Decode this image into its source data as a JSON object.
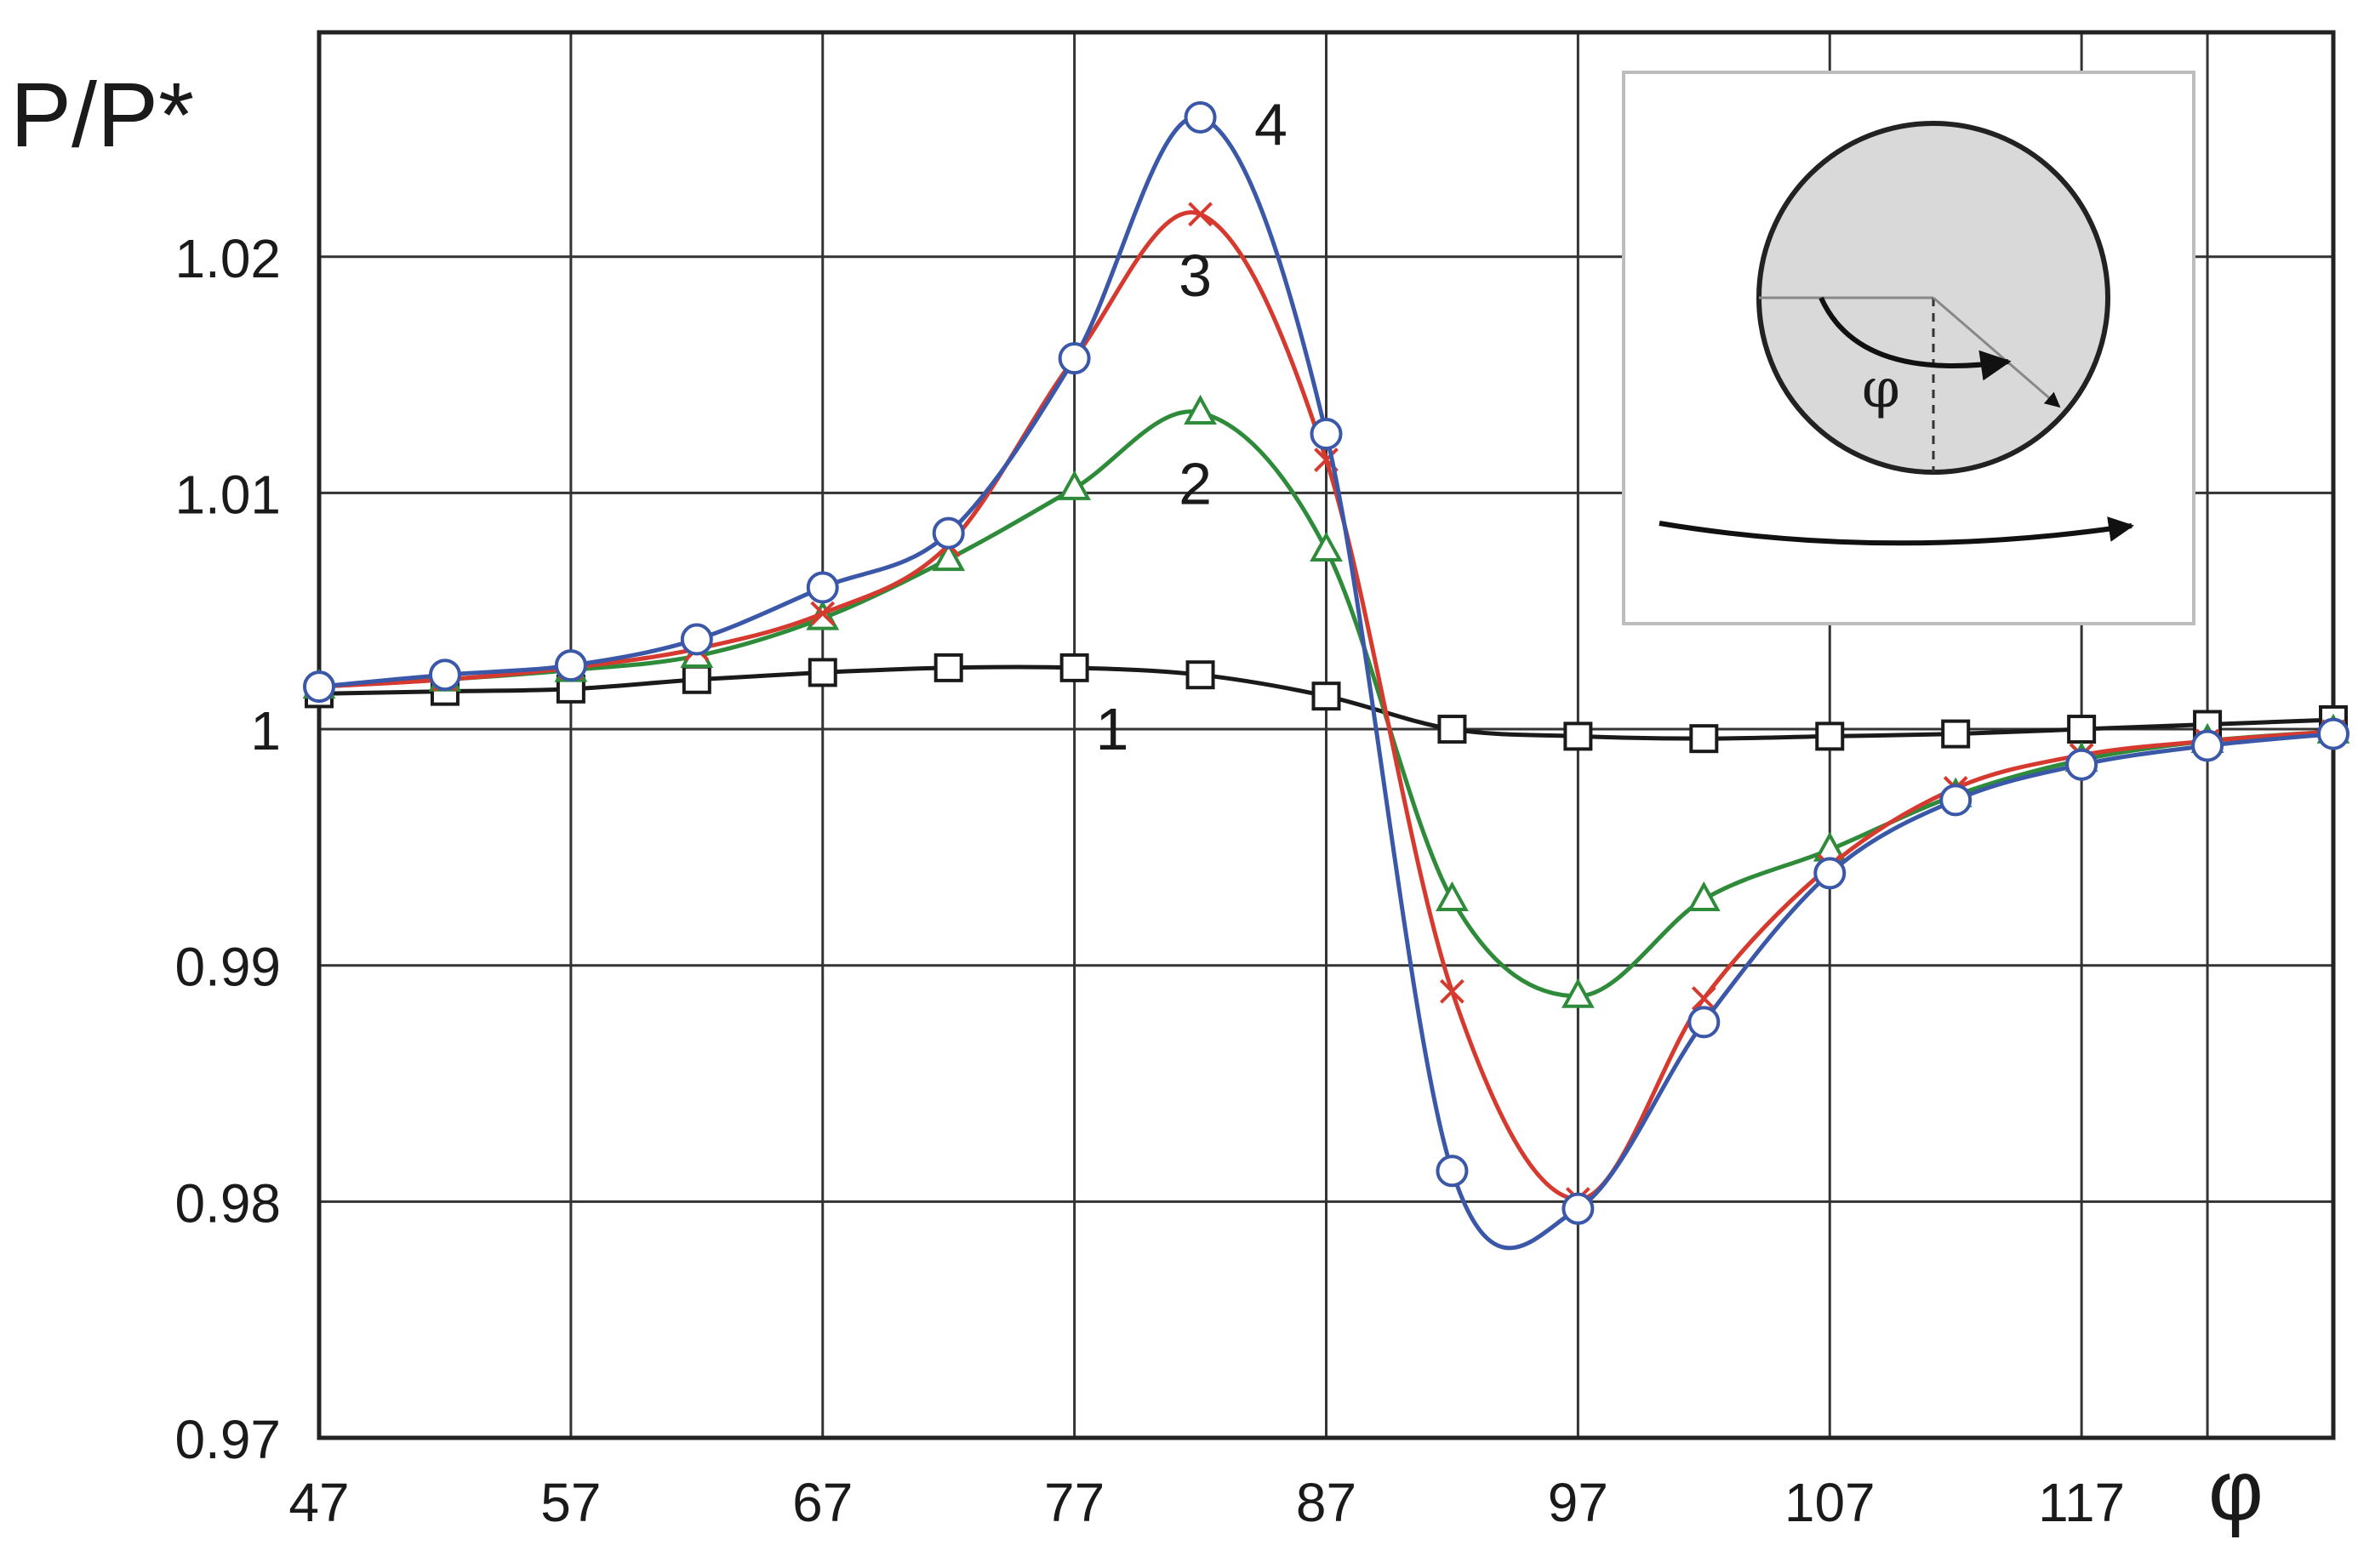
{
  "chart_data": {
    "type": "line",
    "ylabel": "P/P*",
    "xlabel": "φ",
    "xlim": [
      47,
      127
    ],
    "ylim": [
      0.97,
      1.0295
    ],
    "x_ticks": [
      47,
      57,
      67,
      77,
      87,
      97,
      107,
      117
    ],
    "y_ticks": [
      0.97,
      0.98,
      0.99,
      1,
      1.01,
      1.02
    ],
    "y_tick_labels": [
      "0.97",
      "0.98",
      "0.99",
      "1",
      "1.01",
      "1.02"
    ],
    "x_tick_labels": [
      "47",
      "57",
      "67",
      "77",
      "87",
      "97",
      "107",
      "117"
    ],
    "grid": true,
    "series": [
      {
        "name": "1",
        "color": "#1a1a1a",
        "marker": "square",
        "x": [
          47,
          52,
          57,
          62,
          67,
          72,
          77,
          82,
          87,
          92,
          97,
          102,
          107,
          112,
          117,
          122,
          127
        ],
        "y": [
          1.0015,
          1.0016,
          1.0017,
          1.0021,
          1.0024,
          1.0026,
          1.0026,
          1.0023,
          1.0014,
          1.0,
          0.9997,
          0.9996,
          0.9997,
          0.9998,
          1.0,
          1.0002,
          1.0004
        ],
        "label_at": [
          78.5,
          1
        ]
      },
      {
        "name": "2",
        "color": "#2e8b3a",
        "marker": "triangle",
        "x": [
          47,
          52,
          57,
          62,
          67,
          72,
          77,
          82,
          87,
          92,
          97,
          102,
          107,
          112,
          117,
          122,
          127
        ],
        "y": [
          1.0018,
          1.0021,
          1.0025,
          1.0031,
          1.0047,
          1.0072,
          1.0102,
          1.0134,
          1.0076,
          0.9928,
          0.9887,
          0.9928,
          0.9949,
          0.9972,
          0.9987,
          0.9995,
          0.9999
        ],
        "label_at": [
          81.8,
          1.0104
        ]
      },
      {
        "name": "3",
        "color": "#d63a2f",
        "marker": "x",
        "x": [
          47,
          52,
          57,
          62,
          67,
          72,
          77,
          82,
          87,
          92,
          97,
          102,
          107,
          112,
          117,
          122,
          127
        ],
        "y": [
          1.0018,
          1.0021,
          1.0026,
          1.0034,
          1.0049,
          1.0078,
          1.0157,
          1.0218,
          1.0114,
          0.9889,
          0.9801,
          0.9886,
          0.9942,
          0.9975,
          0.9989,
          0.9995,
          0.9999
        ],
        "label_at": [
          81.8,
          1.0192
        ]
      },
      {
        "name": "4",
        "color": "#3a57a8",
        "marker": "circle",
        "x": [
          47,
          52,
          57,
          62,
          67,
          72,
          77,
          82,
          87,
          92,
          97,
          102,
          107,
          112,
          117,
          122,
          127
        ],
        "y": [
          1.0018,
          1.0023,
          1.0027,
          1.0038,
          1.006,
          1.0083,
          1.0157,
          1.0259,
          1.0125,
          0.9813,
          0.9797,
          0.9876,
          0.9939,
          0.997,
          0.9985,
          0.9993,
          0.9998
        ],
        "label_at": [
          84.8,
          1.0256
        ]
      }
    ]
  },
  "inset": {
    "angle_label": "φ"
  }
}
